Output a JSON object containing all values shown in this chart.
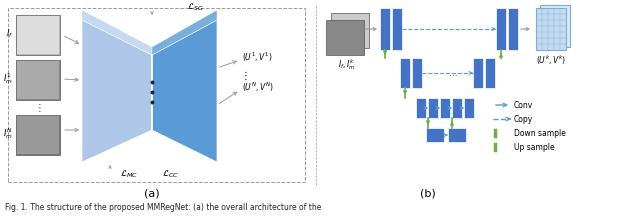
{
  "figure_width": 6.4,
  "figure_height": 2.16,
  "dpi": 100,
  "bg_color": "#ffffff",
  "caption": "Fig. 1. The structure of the proposed MMRegNet: (a) the overall architecture of the",
  "subfig_a_label": "(a)",
  "subfig_b_label": "(b)",
  "blue_light": "#aec6e8",
  "blue_mid": "#5b9bd5",
  "blue_dark": "#4472c4",
  "blue_rect": "#4472c4",
  "blue_rect2": "#5b9bd5",
  "green_marker": "#70ad47",
  "gray_line": "#999999",
  "label_If": "$I_f$",
  "label_Im1": "$I_m^1$",
  "label_ImN": "$I_m^N$",
  "label_U1V1": "$(U^1,V^1)$",
  "label_UNVN": "$(U^N,V^N)$",
  "label_LSG": "$\\mathcal{L}_{SG}$",
  "label_LMC": "$\\mathcal{L}_{MC}$",
  "label_LCC": "$\\mathcal{L}_{CC}$",
  "label_IfIm": "$I_f, I_m^k$",
  "label_UkVk": "$(U^k, V^k)$",
  "legend_conv": "Conv",
  "legend_copy": "Copy",
  "legend_down": "Down sample",
  "legend_up": "Up sample"
}
